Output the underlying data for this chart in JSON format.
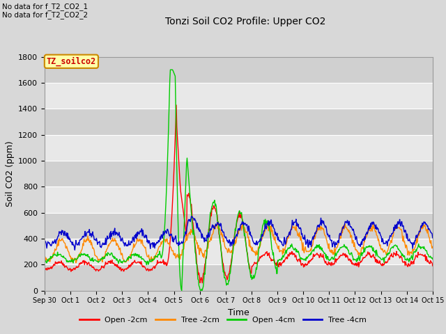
{
  "title": "Tonzi Soil CO2 Profile: Upper CO2",
  "xlabel": "Time",
  "ylabel": "Soil CO2 (ppm)",
  "ylim": [
    0,
    1800
  ],
  "yticks": [
    0,
    200,
    400,
    600,
    800,
    1000,
    1200,
    1400,
    1600,
    1800
  ],
  "bg_color": "#d8d8d8",
  "plot_bg_color": "#e8e8e8",
  "annotations": [
    "No data for f_T2_CO2_1",
    "No data for f_T2_CO2_2"
  ],
  "watermark_text": "TZ_soilco2",
  "watermark_color": "#cc0000",
  "watermark_bg": "#ffffaa",
  "legend_entries": [
    "Open -2cm",
    "Tree -2cm",
    "Open -4cm",
    "Tree -4cm"
  ],
  "line_colors": [
    "#ff0000",
    "#ff8800",
    "#00cc00",
    "#0000cc"
  ],
  "x_tick_labels": [
    "Sep 30",
    "Oct 1",
    "Oct 2",
    "Oct 3",
    "Oct 4",
    "Oct 5",
    "Oct 6",
    "Oct 7",
    "Oct 8",
    "Oct 9",
    "Oct 10",
    "Oct 11",
    "Oct 12",
    "Oct 13",
    "Oct 14",
    "Oct 15"
  ],
  "n_points": 720,
  "seed": 42
}
